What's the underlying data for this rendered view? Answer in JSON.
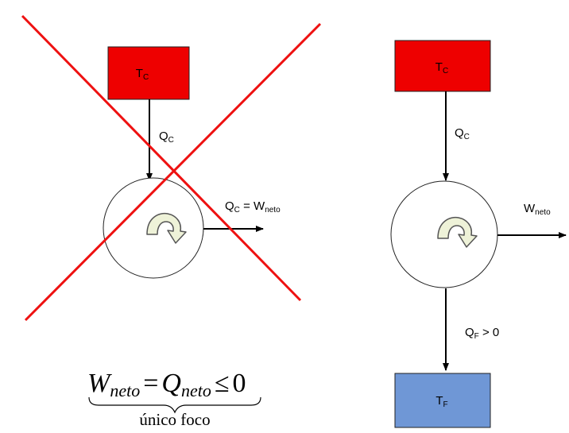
{
  "left_engine": {
    "hot_reservoir": {
      "main": "T",
      "sub": "C",
      "color": "#ee0000"
    },
    "heat_in": {
      "main": "Q",
      "sub": "C"
    },
    "output": {
      "q_main": "Q",
      "q_sub": "C",
      "eq": " = ",
      "w_main": "W",
      "w_sub": "neto"
    },
    "crossed_out": true,
    "cross_color": "#ee1111"
  },
  "right_engine": {
    "hot_reservoir": {
      "main": "T",
      "sub": "C",
      "color": "#ee0000"
    },
    "heat_in": {
      "main": "Q",
      "sub": "C"
    },
    "work_out": {
      "main": "W",
      "sub": "neto"
    },
    "heat_out": {
      "main": "Q",
      "sub": "F",
      "rest": " > 0"
    },
    "cold_reservoir": {
      "main": "T",
      "sub": "F",
      "color": "#6f97d6"
    }
  },
  "equation": {
    "w": "W",
    "w_sub": "neto",
    "eq": "=",
    "q": "Q",
    "q_sub": "neto",
    "rel": "≤",
    "value": "0",
    "brace_label": "único foco"
  },
  "icons": {
    "cycle": "cycle-arrow-icon"
  }
}
